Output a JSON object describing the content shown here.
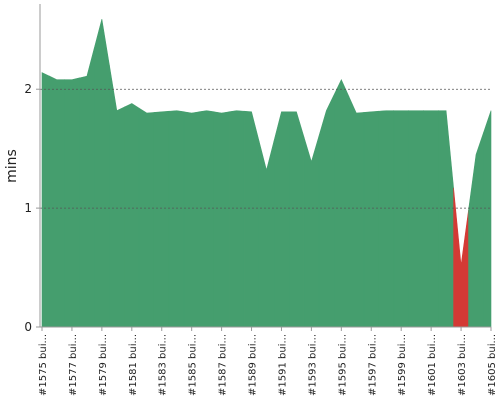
{
  "chart_data": {
    "type": "area",
    "y_label": "mins",
    "categories": [
      "#1575 bui...",
      null,
      "#1577 bui...",
      null,
      "#1579 bui...",
      null,
      "#1581 bui...",
      null,
      "#1583 bui...",
      null,
      "#1585 bui...",
      null,
      "#1587 bui...",
      null,
      "#1589 bui...",
      null,
      "#1591 bui...",
      null,
      "#1593 bui...",
      null,
      "#1595 bui...",
      null,
      "#1597 bui...",
      null,
      "#1599 bui...",
      null,
      "#1601 bui...",
      null,
      "#1603 bui...",
      null,
      "#1605 bui..."
    ],
    "values": [
      2.14,
      2.08,
      2.08,
      2.11,
      2.59,
      1.82,
      1.88,
      1.8,
      1.81,
      1.82,
      1.8,
      1.82,
      1.8,
      1.82,
      1.81,
      1.32,
      1.81,
      1.81,
      1.39,
      1.82,
      2.08,
      1.8,
      1.81,
      1.82,
      1.82,
      1.82,
      1.82,
      1.82,
      0.52,
      1.45,
      1.82
    ],
    "colors": [
      "#459e6e",
      "#459e6e",
      "#459e6e",
      "#459e6e",
      "#459e6e",
      "#459e6e",
      "#459e6e",
      "#459e6e",
      "#459e6e",
      "#459e6e",
      "#459e6e",
      "#459e6e",
      "#459e6e",
      "#459e6e",
      "#459e6e",
      "#459e6e",
      "#459e6e",
      "#459e6e",
      "#459e6e",
      "#459e6e",
      "#459e6e",
      "#459e6e",
      "#459e6e",
      "#459e6e",
      "#459e6e",
      "#459e6e",
      "#459e6e",
      "#459e6e",
      "#d33a35",
      "#459e6e",
      "#459e6e"
    ],
    "ylim": [
      0,
      2.7
    ],
    "yticks": [
      0,
      1,
      2
    ],
    "grid": true
  }
}
